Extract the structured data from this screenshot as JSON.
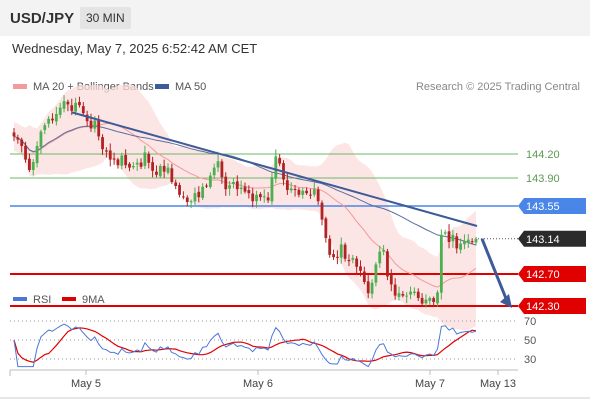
{
  "header": {
    "symbol": "USD/JPY",
    "timeframe": "30 MIN"
  },
  "datetime": "Wednesday, May 7, 2025 6:52:42 AM CET",
  "colors": {
    "bollinger": "#f39a9a",
    "ma50": "#5b6f9e",
    "trend": "#3d5a99",
    "resistance": "#6fb86a",
    "current": "#4a86e8",
    "support": "#e00000",
    "up_candle": "#4caf50",
    "down_candle": "#b22222",
    "rsi": "#4a78d8",
    "rsi_ma": "#e00000"
  },
  "chart_data": [
    {
      "type": "candlestick",
      "legend": [
        {
          "name": "MA 20 + Bollinger Bands",
          "color": "#f39a9a"
        },
        {
          "name": "MA 50",
          "color": "#3d5a99"
        }
      ],
      "credit": "Research © 2025 Trading Central",
      "x_ticks": [
        "May 5",
        "May 6",
        "May 7",
        "May 13"
      ],
      "levels": [
        {
          "label": "144.20",
          "value": 144.2,
          "kind": "resistance"
        },
        {
          "label": "143.90",
          "value": 143.9,
          "kind": "resistance"
        },
        {
          "label": "143.55",
          "value": 143.55,
          "kind": "pivot"
        },
        {
          "label": "143.14",
          "value": 143.14,
          "kind": "current"
        },
        {
          "label": "142.70",
          "value": 142.7,
          "kind": "support"
        },
        {
          "label": "142.30",
          "value": 142.3,
          "kind": "support"
        }
      ],
      "close": [
        144.42,
        144.38,
        144.3,
        144.13,
        144.0,
        144.1,
        144.3,
        144.48,
        144.56,
        144.64,
        144.62,
        144.7,
        144.78,
        144.86,
        144.82,
        144.74,
        144.84,
        144.81,
        144.71,
        144.61,
        144.52,
        144.62,
        144.42,
        144.26,
        144.23,
        144.13,
        144.13,
        144.06,
        144.18,
        144.06,
        144.03,
        144.05,
        144.09,
        144.04,
        144.22,
        144.09,
        143.99,
        143.94,
        144.05,
        143.98,
        144.03,
        143.85,
        143.8,
        143.69,
        143.66,
        143.6,
        143.61,
        143.71,
        143.66,
        143.79,
        143.8,
        143.93,
        144.03,
        144.11,
        143.91,
        143.76,
        143.81,
        143.85,
        143.76,
        143.78,
        143.73,
        143.71,
        143.61,
        143.69,
        143.66,
        143.67,
        143.62,
        143.91,
        144.17,
        144.08,
        143.88,
        143.75,
        143.77,
        143.75,
        143.69,
        143.74,
        143.71,
        143.69,
        143.76,
        143.61,
        143.38,
        143.15,
        142.94,
        142.91,
        142.91,
        143.07,
        142.89,
        142.86,
        142.9,
        142.79,
        142.74,
        142.6,
        142.46,
        142.59,
        142.82,
        142.98,
        143.0,
        142.67,
        142.57,
        142.43,
        142.46,
        142.43,
        142.43,
        142.48,
        142.48,
        142.4,
        142.33,
        142.38,
        142.4,
        142.35,
        142.47,
        143.19,
        143.22,
        143.1,
        143.19,
        143.02,
        143.08,
        143.11,
        143.13,
        143.1,
        143.14
      ],
      "ma50_end": 143.3,
      "trendline": {
        "from": 144.72,
        "to": 143.3
      },
      "forecast_arrow": {
        "from": 143.14,
        "to": 142.3
      }
    },
    {
      "type": "line",
      "legend": [
        {
          "name": "RSI",
          "color": "#4a78d8"
        },
        {
          "name": "9MA",
          "color": "#e00000"
        }
      ],
      "y_ticks": [
        70,
        50,
        30
      ],
      "ylim": [
        20,
        80
      ]
    }
  ]
}
